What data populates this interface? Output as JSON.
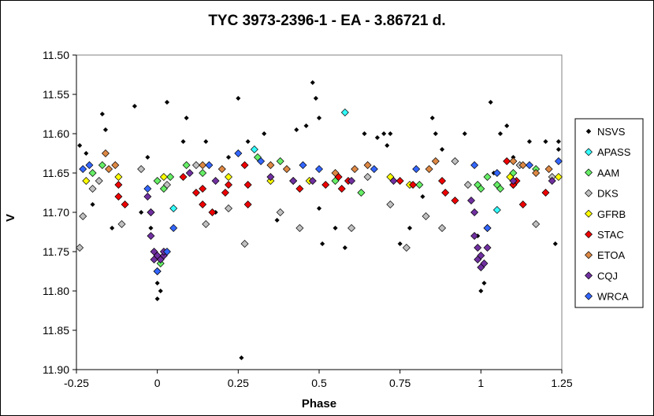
{
  "chart_data": {
    "type": "scatter",
    "title": "TYC 3973-2396-1  - EA - 3.86721 d.",
    "xlabel": "Phase",
    "ylabel": "V",
    "xlim": [
      -0.25,
      1.25
    ],
    "ylim": [
      11.5,
      11.9
    ],
    "y_inverted": true,
    "x_ticks": [
      "-0.25",
      "0",
      "0.25",
      "0.5",
      "0.75",
      "1",
      "1.25"
    ],
    "y_ticks": [
      "11.50",
      "11.55",
      "11.60",
      "11.65",
      "11.70",
      "11.75",
      "11.80",
      "11.85",
      "11.90"
    ],
    "grid": false,
    "legend_position": "right",
    "series": [
      {
        "name": "NSVS",
        "color": "#000000",
        "marker": "small-diamond",
        "points": [
          [
            -0.24,
            11.615
          ],
          [
            -0.22,
            11.625
          ],
          [
            -0.2,
            11.69
          ],
          [
            -0.17,
            11.575
          ],
          [
            -0.16,
            11.595
          ],
          [
            -0.14,
            11.72
          ],
          [
            -0.07,
            11.565
          ],
          [
            -0.05,
            11.7
          ],
          [
            -0.03,
            11.63
          ],
          [
            -0.02,
            11.72
          ],
          [
            0,
            11.79
          ],
          [
            0,
            11.81
          ],
          [
            0.01,
            11.8
          ],
          [
            0.03,
            11.56
          ],
          [
            0.08,
            11.61
          ],
          [
            0.09,
            11.58
          ],
          [
            0.15,
            11.61
          ],
          [
            0.18,
            11.7
          ],
          [
            0.22,
            11.63
          ],
          [
            0.25,
            11.555
          ],
          [
            0.26,
            11.885
          ],
          [
            0.28,
            11.61
          ],
          [
            0.33,
            11.6
          ],
          [
            0.37,
            11.71
          ],
          [
            0.43,
            11.595
          ],
          [
            0.46,
            11.59
          ],
          [
            0.48,
            11.535
          ],
          [
            0.49,
            11.555
          ],
          [
            0.5,
            11.58
          ],
          [
            0.5,
            11.695
          ],
          [
            0.51,
            11.74
          ],
          [
            0.55,
            11.72
          ],
          [
            0.58,
            11.745
          ],
          [
            0.64,
            11.6
          ],
          [
            0.68,
            11.605
          ],
          [
            0.7,
            11.6
          ],
          [
            0.71,
            11.615
          ],
          [
            0.72,
            11.6
          ],
          [
            0.75,
            11.74
          ],
          [
            0.78,
            11.72
          ],
          [
            0.82,
            11.68
          ],
          [
            0.85,
            11.58
          ],
          [
            0.86,
            11.6
          ],
          [
            0.88,
            11.62
          ],
          [
            0.95,
            11.6
          ],
          [
            0.99,
            11.73
          ],
          [
            1,
            11.8
          ],
          [
            1.01,
            11.79
          ],
          [
            1.03,
            11.56
          ],
          [
            1.04,
            11.65
          ],
          [
            1.06,
            11.6
          ],
          [
            1.08,
            11.59
          ],
          [
            1.1,
            11.63
          ],
          [
            1.15,
            11.61
          ],
          [
            1.2,
            11.61
          ],
          [
            1.23,
            11.74
          ],
          [
            1.24,
            11.61
          ],
          [
            1.24,
            11.62
          ]
        ]
      },
      {
        "name": "APASS",
        "color": "#33ffff",
        "marker": "diamond",
        "points": [
          [
            0.05,
            11.695
          ],
          [
            0.3,
            11.62
          ],
          [
            0.58,
            11.573
          ],
          [
            1.05,
            11.697
          ]
        ]
      },
      {
        "name": "AAM",
        "color": "#66ee66",
        "marker": "diamond",
        "points": [
          [
            -0.2,
            11.65
          ],
          [
            -0.17,
            11.64
          ],
          [
            0,
            11.66
          ],
          [
            0.01,
            11.765
          ],
          [
            0.02,
            11.67
          ],
          [
            0.04,
            11.655
          ],
          [
            0.09,
            11.64
          ],
          [
            0.14,
            11.65
          ],
          [
            0.31,
            11.63
          ],
          [
            0.38,
            11.635
          ],
          [
            0.55,
            11.66
          ],
          [
            0.63,
            11.675
          ],
          [
            0.81,
            11.665
          ],
          [
            0.99,
            11.665
          ],
          [
            1.0,
            11.67
          ],
          [
            1.02,
            11.655
          ],
          [
            1.05,
            11.665
          ],
          [
            1.06,
            11.67
          ],
          [
            1.1,
            11.65
          ],
          [
            1.17,
            11.645
          ]
        ]
      },
      {
        "name": "DKS",
        "color": "#c0c0c0",
        "marker": "diamond",
        "points": [
          [
            -0.24,
            11.745
          ],
          [
            -0.23,
            11.705
          ],
          [
            -0.2,
            11.67
          ],
          [
            -0.18,
            11.66
          ],
          [
            -0.11,
            11.715
          ],
          [
            -0.05,
            11.645
          ],
          [
            -0.02,
            11.7
          ],
          [
            0.03,
            11.665
          ],
          [
            0.12,
            11.64
          ],
          [
            0.15,
            11.715
          ],
          [
            0.22,
            11.695
          ],
          [
            0.27,
            11.74
          ],
          [
            0.38,
            11.7
          ],
          [
            0.44,
            11.72
          ],
          [
            0.6,
            11.72
          ],
          [
            0.65,
            11.655
          ],
          [
            0.72,
            11.69
          ],
          [
            0.77,
            11.745
          ],
          [
            0.83,
            11.705
          ],
          [
            0.88,
            11.72
          ],
          [
            0.92,
            11.635
          ],
          [
            0.96,
            11.665
          ],
          [
            1.02,
            11.72
          ],
          [
            1.1,
            11.665
          ],
          [
            1.12,
            11.64
          ],
          [
            1.17,
            11.715
          ],
          [
            1.22,
            11.655
          ]
        ]
      },
      {
        "name": "GFRB",
        "color": "#ffff00",
        "marker": "diamond",
        "points": [
          [
            -0.22,
            11.66
          ],
          [
            -0.12,
            11.655
          ],
          [
            0.02,
            11.655
          ],
          [
            0.22,
            11.655
          ],
          [
            0.35,
            11.66
          ],
          [
            0.47,
            11.66
          ],
          [
            0.72,
            11.655
          ],
          [
            0.78,
            11.665
          ],
          [
            1.09,
            11.655
          ],
          [
            1.24,
            11.655
          ]
        ]
      },
      {
        "name": "STAC",
        "color": "#ee0000",
        "marker": "diamond",
        "points": [
          [
            -0.12,
            11.665
          ],
          [
            -0.12,
            11.68
          ],
          [
            -0.1,
            11.69
          ],
          [
            0.08,
            11.655
          ],
          [
            0.12,
            11.675
          ],
          [
            0.14,
            11.67
          ],
          [
            0.14,
            11.69
          ],
          [
            0.17,
            11.7
          ],
          [
            0.21,
            11.675
          ],
          [
            0.22,
            11.665
          ],
          [
            0.27,
            11.64
          ],
          [
            0.28,
            11.665
          ],
          [
            0.28,
            11.69
          ],
          [
            0.42,
            11.66
          ],
          [
            0.44,
            11.67
          ],
          [
            0.52,
            11.665
          ],
          [
            0.56,
            11.655
          ],
          [
            0.57,
            11.67
          ],
          [
            0.59,
            11.66
          ],
          [
            0.75,
            11.66
          ],
          [
            0.79,
            11.665
          ],
          [
            0.88,
            11.66
          ],
          [
            0.89,
            11.675
          ],
          [
            0.92,
            11.685
          ],
          [
            1.08,
            11.635
          ],
          [
            1.1,
            11.665
          ],
          [
            1.11,
            11.66
          ],
          [
            1.13,
            11.69
          ],
          [
            1.2,
            11.675
          ]
        ]
      },
      {
        "name": "ETOA",
        "color": "#dd8844",
        "marker": "diamond",
        "points": [
          [
            -0.16,
            11.625
          ],
          [
            -0.15,
            11.645
          ],
          [
            -0.13,
            11.64
          ],
          [
            0.14,
            11.64
          ],
          [
            0.2,
            11.645
          ],
          [
            0.35,
            11.64
          ],
          [
            0.4,
            11.645
          ],
          [
            0.55,
            11.65
          ],
          [
            0.61,
            11.645
          ],
          [
            0.65,
            11.64
          ],
          [
            0.84,
            11.645
          ],
          [
            0.86,
            11.635
          ],
          [
            1.1,
            11.635
          ],
          [
            1.13,
            11.64
          ],
          [
            1.17,
            11.65
          ],
          [
            1.21,
            11.645
          ]
        ]
      },
      {
        "name": "CQJ",
        "color": "#7030a0",
        "marker": "diamond",
        "points": [
          [
            -0.03,
            11.68
          ],
          [
            -0.02,
            11.7
          ],
          [
            -0.02,
            11.73
          ],
          [
            -0.01,
            11.75
          ],
          [
            -0.01,
            11.76
          ],
          [
            0,
            11.755
          ],
          [
            0,
            11.775
          ],
          [
            0.01,
            11.76
          ],
          [
            0.02,
            11.755
          ],
          [
            0.02,
            11.75
          ],
          [
            0.1,
            11.65
          ],
          [
            0.18,
            11.66
          ],
          [
            0.35,
            11.655
          ],
          [
            0.42,
            11.66
          ],
          [
            0.48,
            11.66
          ],
          [
            0.6,
            11.66
          ],
          [
            0.73,
            11.66
          ],
          [
            0.97,
            11.685
          ],
          [
            0.98,
            11.7
          ],
          [
            0.98,
            11.73
          ],
          [
            0.99,
            11.745
          ],
          [
            0.99,
            11.76
          ],
          [
            1.0,
            11.77
          ],
          [
            1.0,
            11.755
          ],
          [
            1.01,
            11.765
          ],
          [
            1.02,
            11.745
          ],
          [
            1.1,
            11.66
          ],
          [
            1.22,
            11.66
          ]
        ]
      },
      {
        "name": "WRCA",
        "color": "#3366ff",
        "marker": "diamond",
        "points": [
          [
            -0.23,
            11.645
          ],
          [
            -0.21,
            11.64
          ],
          [
            -0.03,
            11.67
          ],
          [
            0.0,
            11.775
          ],
          [
            0.03,
            11.75
          ],
          [
            0.05,
            11.72
          ],
          [
            0.16,
            11.64
          ],
          [
            0.25,
            11.625
          ],
          [
            0.32,
            11.635
          ],
          [
            0.45,
            11.64
          ],
          [
            0.5,
            11.645
          ],
          [
            0.67,
            11.645
          ],
          [
            0.8,
            11.645
          ],
          [
            0.98,
            11.64
          ],
          [
            1.02,
            11.72
          ],
          [
            1.05,
            11.65
          ],
          [
            1.15,
            11.64
          ],
          [
            1.24,
            11.635
          ]
        ]
      }
    ]
  }
}
